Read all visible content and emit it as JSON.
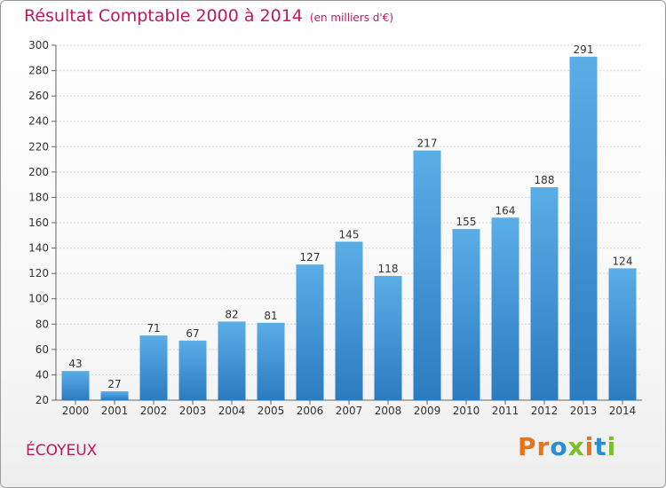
{
  "header": {
    "title": "Résultat Comptable 2000 à 2014",
    "subtitle": "(en milliers d'€)"
  },
  "footer": {
    "commune": "ÉCOYEUX",
    "logo_text": "Proxiti"
  },
  "colors": {
    "title": "#c0185e",
    "bar_top": "#5aaee6",
    "bar_bottom": "#2a7cc0",
    "logo_letters": [
      "#e8731a",
      "#e8731a",
      "#2a8fd0",
      "#7bbd2b",
      "#e8731a",
      "#2a8fd0",
      "#7bbd2b"
    ]
  },
  "chart_data": {
    "type": "bar",
    "categories": [
      "2000",
      "2001",
      "2002",
      "2003",
      "2004",
      "2005",
      "2006",
      "2007",
      "2008",
      "2009",
      "2010",
      "2011",
      "2012",
      "2013",
      "2014"
    ],
    "values": [
      43,
      27,
      71,
      67,
      82,
      81,
      127,
      145,
      118,
      217,
      155,
      164,
      188,
      291,
      124
    ],
    "ylim": [
      20,
      300
    ],
    "yticks": [
      20,
      40,
      60,
      80,
      100,
      120,
      140,
      160,
      180,
      200,
      220,
      240,
      260,
      280,
      300
    ],
    "grid": true,
    "data_labels": true
  }
}
